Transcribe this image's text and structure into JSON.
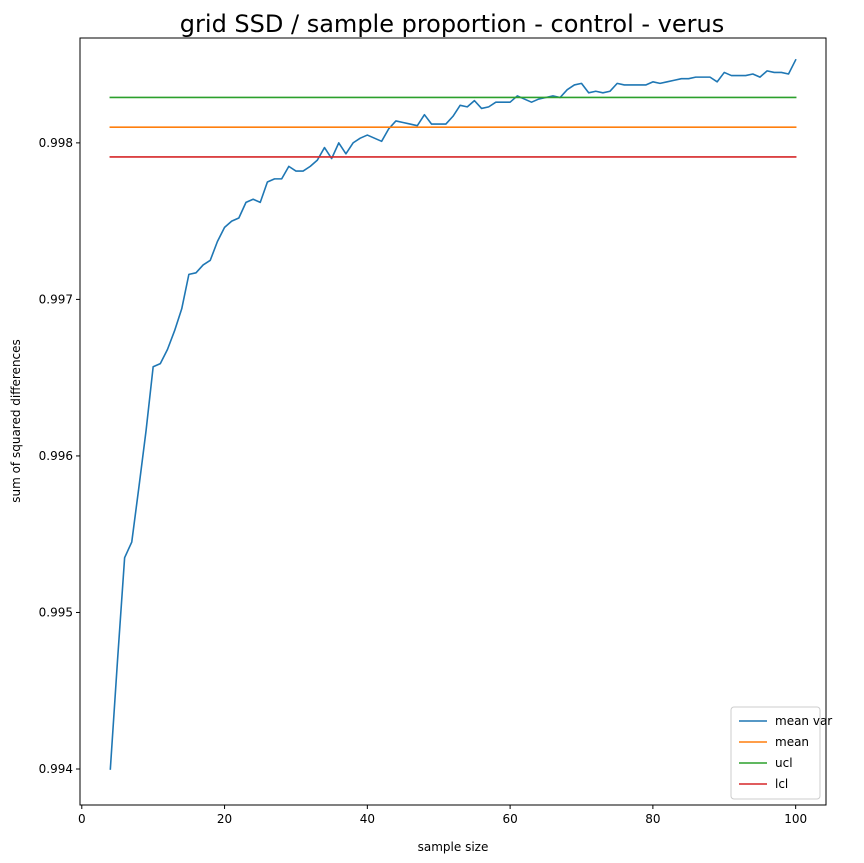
{
  "chart_data": {
    "type": "line",
    "title": "grid SSD / sample proportion - control - verus",
    "xlabel": "sample size",
    "ylabel": "sum of squared differences",
    "xlim": [
      -0.25,
      104.25
    ],
    "ylim": [
      0.99377,
      0.99867
    ],
    "xticks": [
      0,
      20,
      40,
      60,
      80,
      100
    ],
    "xtick_labels": [
      "0",
      "20",
      "40",
      "60",
      "80",
      "100"
    ],
    "yticks": [
      0.994,
      0.995,
      0.996,
      0.997,
      0.998
    ],
    "ytick_labels": [
      "0.994",
      "0.995",
      "0.996",
      "0.997",
      "0.998"
    ],
    "grid": false,
    "legend_position": "lower-right",
    "x": [
      4,
      5,
      6,
      7,
      8,
      9,
      10,
      11,
      12,
      13,
      14,
      15,
      16,
      17,
      18,
      19,
      20,
      21,
      22,
      23,
      24,
      25,
      26,
      27,
      28,
      29,
      30,
      31,
      32,
      33,
      34,
      35,
      36,
      37,
      38,
      39,
      40,
      41,
      42,
      43,
      44,
      45,
      46,
      47,
      48,
      49,
      50,
      51,
      52,
      53,
      54,
      55,
      56,
      57,
      58,
      59,
      60,
      61,
      62,
      63,
      64,
      65,
      66,
      67,
      68,
      69,
      70,
      71,
      72,
      73,
      74,
      75,
      76,
      77,
      78,
      79,
      80,
      81,
      82,
      83,
      84,
      85,
      86,
      87,
      88,
      89,
      90,
      91,
      92,
      93,
      94,
      95,
      96,
      97,
      98,
      99,
      100
    ],
    "series": [
      {
        "name": "mean var",
        "color": "#1f77b4",
        "values": [
          0.994,
          0.99469,
          0.99535,
          0.99545,
          0.9958,
          0.99616,
          0.99657,
          0.99659,
          0.99668,
          0.9968,
          0.99694,
          0.99716,
          0.99717,
          0.99722,
          0.99725,
          0.99737,
          0.99746,
          0.9975,
          0.99752,
          0.99762,
          0.99764,
          0.99762,
          0.99775,
          0.99777,
          0.99777,
          0.99785,
          0.99782,
          0.99782,
          0.99785,
          0.99789,
          0.99797,
          0.9979,
          0.998,
          0.99793,
          0.998,
          0.99803,
          0.99805,
          0.99803,
          0.99801,
          0.99809,
          0.99814,
          0.99813,
          0.99812,
          0.99811,
          0.99818,
          0.99812,
          0.99812,
          0.99812,
          0.99817,
          0.99824,
          0.99823,
          0.99827,
          0.99822,
          0.99823,
          0.99826,
          0.99826,
          0.99826,
          0.9983,
          0.99828,
          0.99826,
          0.99828,
          0.99829,
          0.9983,
          0.99829,
          0.99834,
          0.99837,
          0.99838,
          0.99832,
          0.99833,
          0.99832,
          0.99833,
          0.99838,
          0.99837,
          0.99837,
          0.99837,
          0.99837,
          0.99839,
          0.99838,
          0.99839,
          0.9984,
          0.99841,
          0.99841,
          0.99842,
          0.99842,
          0.99842,
          0.99839,
          0.99845,
          0.99843,
          0.99843,
          0.99843,
          0.99844,
          0.99842,
          0.99846,
          0.99845,
          0.99845,
          0.99844,
          0.99853
        ]
      },
      {
        "name": "mean",
        "color": "#ff7f0e",
        "x": [
          4,
          100
        ],
        "values": [
          0.9981,
          0.9981
        ]
      },
      {
        "name": "ucl",
        "color": "#2ca02c",
        "x": [
          4,
          100
        ],
        "values": [
          0.99829,
          0.99829
        ]
      },
      {
        "name": "lcl",
        "color": "#d62728",
        "x": [
          4,
          100
        ],
        "values": [
          0.99791,
          0.99791
        ]
      }
    ]
  }
}
